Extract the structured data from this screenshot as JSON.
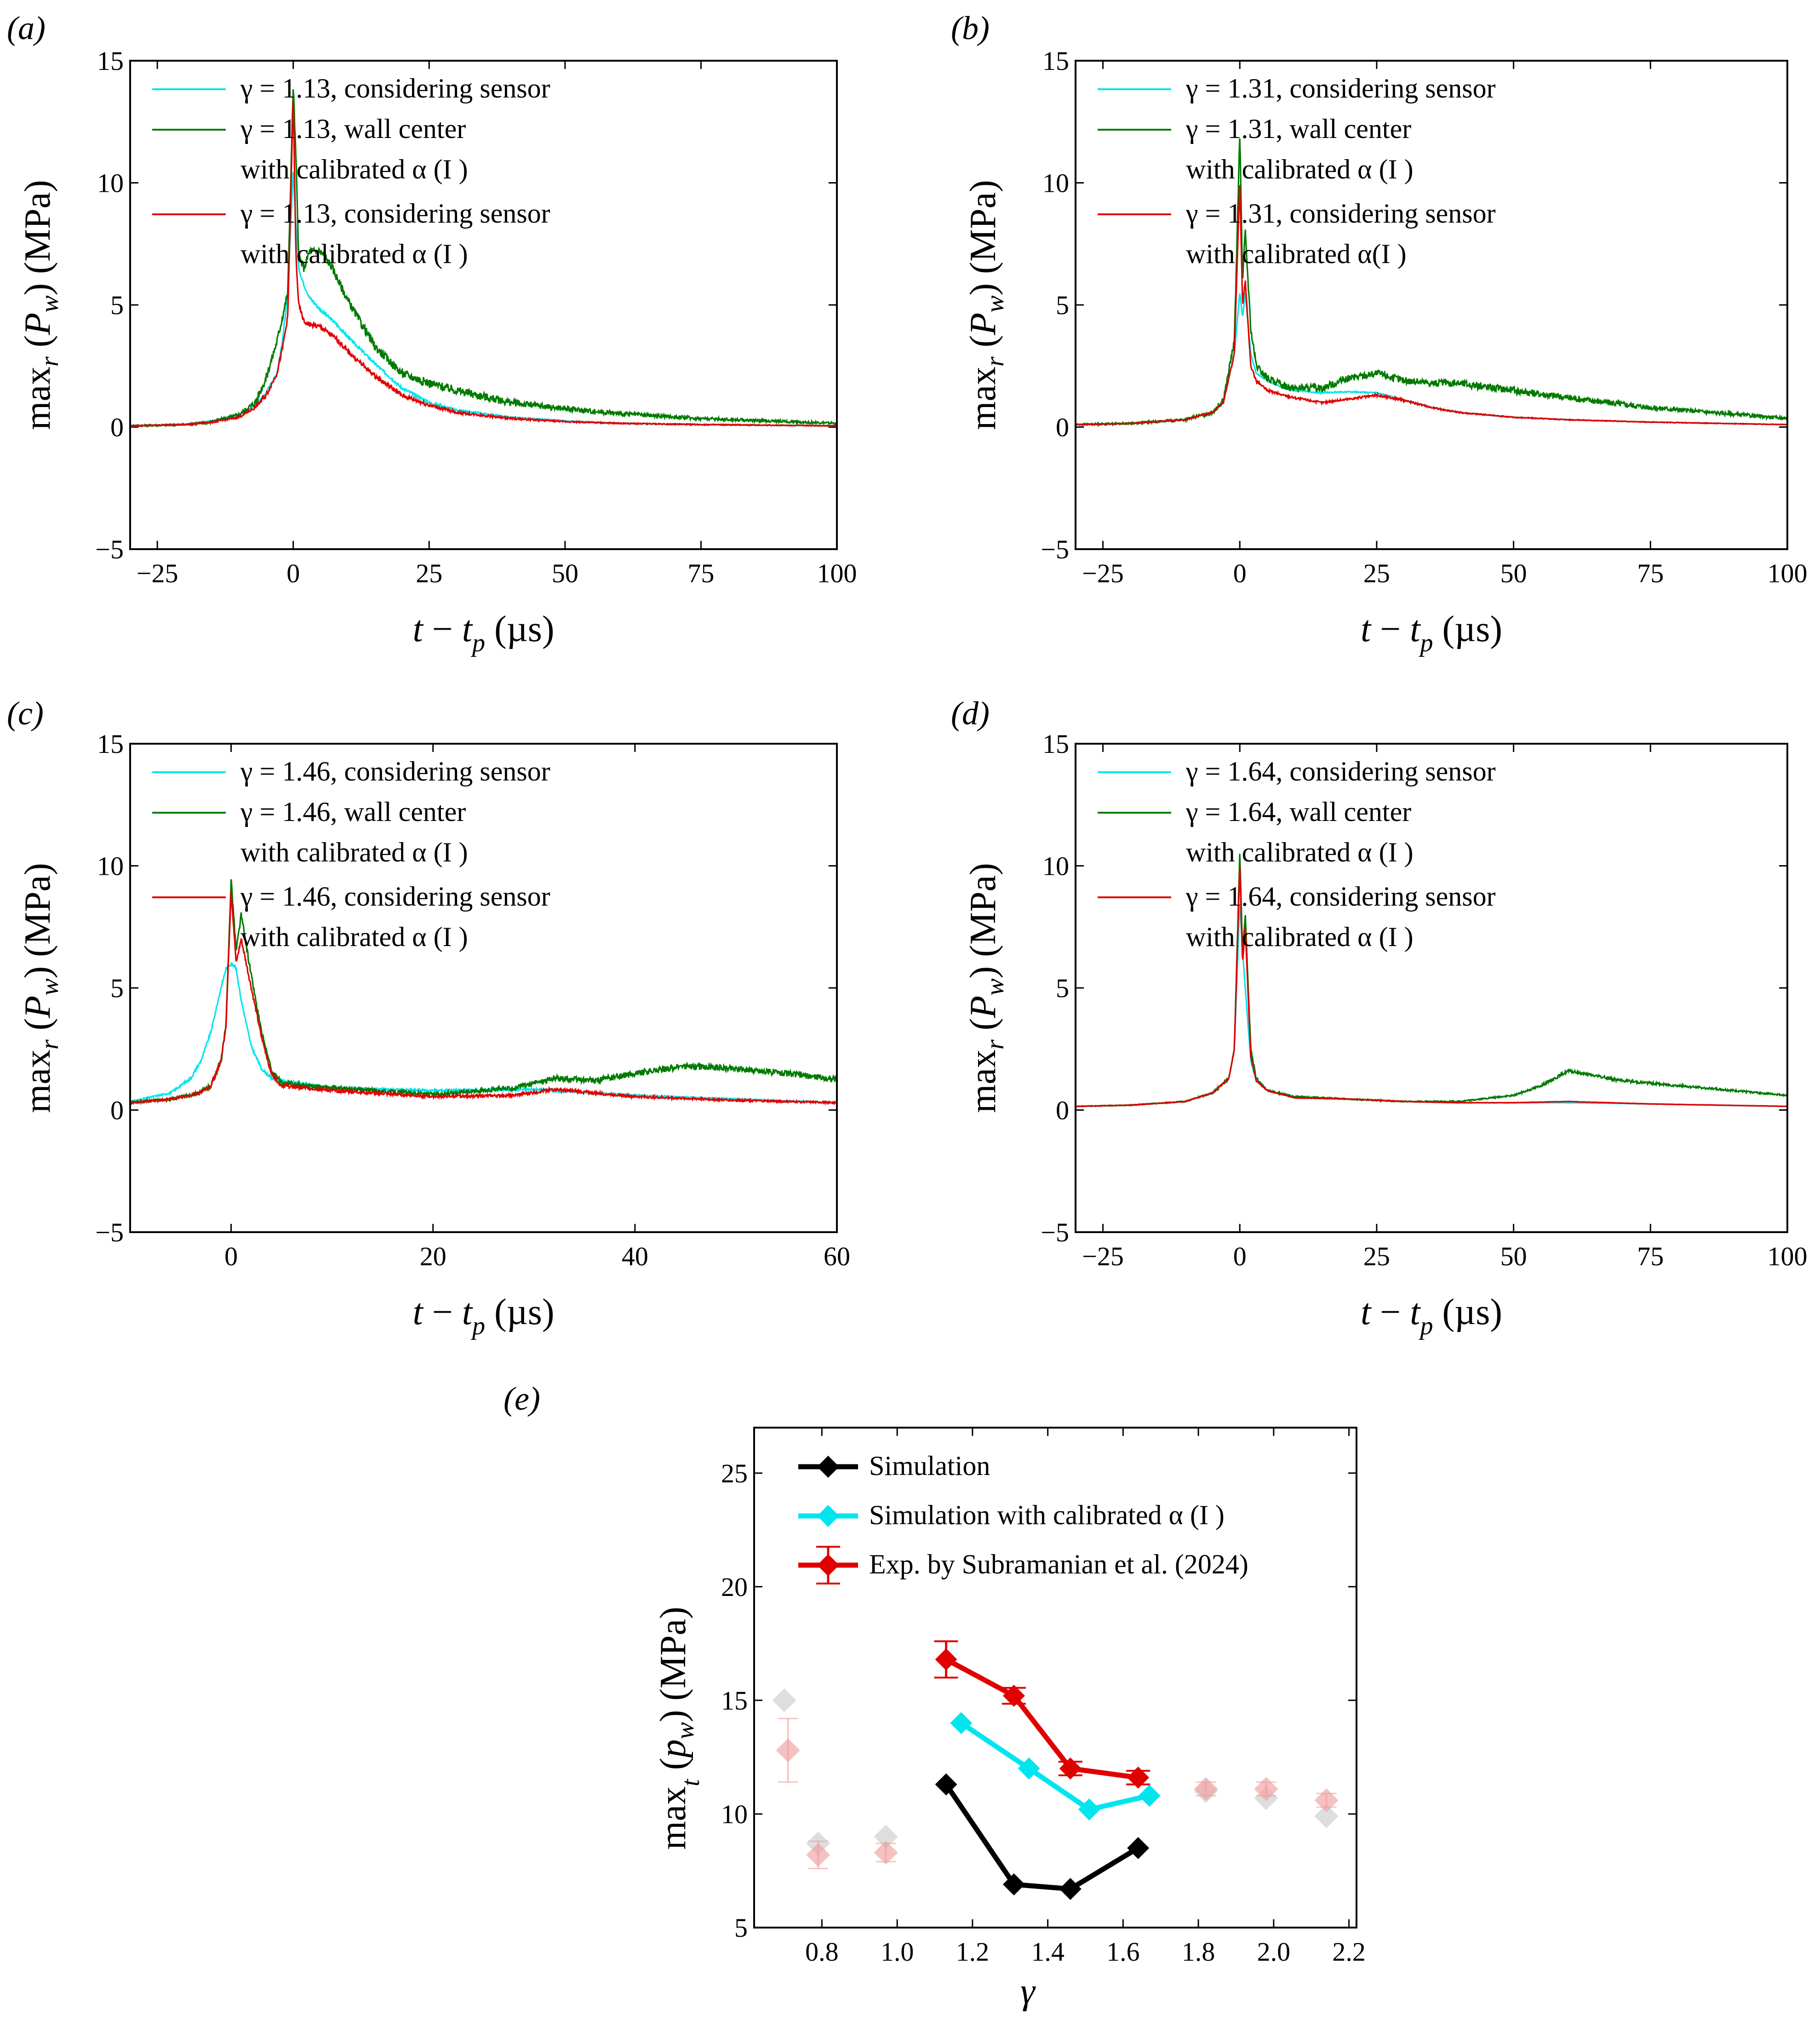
{
  "panels": [
    {
      "id": "a",
      "label": "(a)",
      "xlabel": "t − t_p (µs)",
      "ylabel": "max_r (P_w) (MPa)",
      "xlim": [
        -30,
        100
      ],
      "ylim": [
        -5,
        15
      ],
      "xticks": [
        -25,
        0,
        25,
        50,
        75,
        100
      ],
      "yticks": [
        -5,
        0,
        5,
        10,
        15
      ],
      "legend": [
        {
          "lines": [
            "γ = 1.13, considering sensor"
          ],
          "color": "#00e5ee"
        },
        {
          "lines": [
            "γ = 1.13, wall center",
            "with calibrated α (I )"
          ],
          "color": "#007a00"
        },
        {
          "lines": [
            "γ = 1.13, considering sensor",
            "with calibrated α (I )"
          ],
          "color": "#e00000"
        }
      ]
    },
    {
      "id": "b",
      "label": "(b)",
      "xlabel": "t − t_p (µs)",
      "ylabel": "max_r (P_w) (MPa)",
      "xlim": [
        -30,
        100
      ],
      "ylim": [
        -5,
        15
      ],
      "xticks": [
        -25,
        0,
        25,
        50,
        75,
        100
      ],
      "yticks": [
        -5,
        0,
        5,
        10,
        15
      ],
      "legend": [
        {
          "lines": [
            "γ = 1.31, considering sensor"
          ],
          "color": "#00e5ee"
        },
        {
          "lines": [
            "γ = 1.31, wall center",
            "with calibrated α (I )"
          ],
          "color": "#007a00"
        },
        {
          "lines": [
            "γ = 1.31, considering sensor",
            "with calibrated α(I )"
          ],
          "color": "#e00000"
        }
      ]
    },
    {
      "id": "c",
      "label": "(c)",
      "xlabel": "t − t_p (µs)",
      "ylabel": "max_r (P_w) (MPa)",
      "xlim": [
        -10,
        60
      ],
      "ylim": [
        -5,
        15
      ],
      "xticks": [
        0,
        20,
        40,
        60
      ],
      "yticks": [
        -5,
        0,
        5,
        10,
        15
      ],
      "legend": [
        {
          "lines": [
            "γ = 1.46, considering sensor"
          ],
          "color": "#00e5ee"
        },
        {
          "lines": [
            "γ = 1.46, wall center",
            "with calibrated α (I )"
          ],
          "color": "#007a00"
        },
        {
          "lines": [
            "γ = 1.46, considering sensor",
            "with calibrated α (I )"
          ],
          "color": "#e00000"
        }
      ]
    },
    {
      "id": "d",
      "label": "(d)",
      "xlabel": "t − t_p (µs)",
      "ylabel": "max_r (P_w) (MPa)",
      "xlim": [
        -30,
        100
      ],
      "ylim": [
        -5,
        15
      ],
      "xticks": [
        -25,
        0,
        25,
        50,
        75,
        100
      ],
      "yticks": [
        -5,
        0,
        5,
        10,
        15
      ],
      "legend": [
        {
          "lines": [
            "γ = 1.64, considering sensor"
          ],
          "color": "#00e5ee"
        },
        {
          "lines": [
            "γ = 1.64, wall center",
            "with calibrated α (I )"
          ],
          "color": "#007a00"
        },
        {
          "lines": [
            "γ = 1.64, considering sensor",
            "with calibrated α (I )"
          ],
          "color": "#e00000"
        }
      ]
    },
    {
      "id": "e",
      "label": "(e)",
      "xlabel": "γ",
      "ylabel": "max_t (p_w) (MPa)",
      "xlim": [
        0.62,
        2.22
      ],
      "ylim": [
        5,
        27
      ],
      "xticks": [
        0.8,
        1.0,
        1.2,
        1.4,
        1.6,
        1.8,
        2.0,
        2.2
      ],
      "xticklabels": [
        "0.8",
        "1.0",
        "1.2",
        "1.4",
        "1.6",
        "1.8",
        "2.0",
        "2.2"
      ],
      "yticks": [
        5,
        10,
        15,
        20,
        25
      ],
      "legend": [
        {
          "lines": [
            "Simulation"
          ],
          "color": "#000000"
        },
        {
          "lines": [
            "Simulation with calibrated α (I )"
          ],
          "color": "#00e5ee"
        },
        {
          "lines": [
            "Exp. by Subramanian et al. (2024)"
          ],
          "color": "#e00000"
        }
      ]
    }
  ],
  "chart_data": [
    {
      "panel": "a",
      "type": "line",
      "series": [
        {
          "name": "γ = 1.13, considering sensor",
          "color": "#00e5ee",
          "noise": 0.12,
          "x": [
            -30,
            -20,
            -15,
            -10,
            -7,
            -5,
            -3,
            -2,
            -1,
            0,
            0.5,
            1,
            2,
            3,
            5,
            8,
            10,
            15,
            20,
            25,
            30,
            40,
            50,
            60,
            75,
            100
          ],
          "y": [
            0.05,
            0.1,
            0.25,
            0.5,
            0.9,
            1.4,
            2.2,
            3.5,
            5.5,
            10.5,
            8.2,
            6.5,
            5.8,
            5.3,
            4.8,
            4.2,
            3.7,
            2.6,
            1.6,
            1.0,
            0.7,
            0.4,
            0.25,
            0.15,
            0.1,
            0.05
          ]
        },
        {
          "name": "γ = 1.13, wall center with calibrated α (I )",
          "color": "#007a00",
          "noise": 0.35,
          "x": [
            -30,
            -20,
            -15,
            -10,
            -7,
            -5,
            -3,
            -2,
            -1,
            0,
            0.5,
            1,
            2,
            3,
            5,
            7,
            10,
            15,
            20,
            25,
            30,
            40,
            50,
            60,
            75,
            100
          ],
          "y": [
            0.05,
            0.1,
            0.2,
            0.5,
            1.0,
            2.0,
            3.5,
            4.5,
            5.5,
            14.0,
            11.0,
            7.0,
            6.5,
            7.2,
            7.2,
            6.6,
            5.2,
            3.3,
            2.2,
            1.8,
            1.5,
            1.0,
            0.75,
            0.55,
            0.35,
            0.15
          ]
        },
        {
          "name": "γ = 1.13, considering sensor with calibrated α (I )",
          "color": "#e00000",
          "noise": 0.2,
          "x": [
            -30,
            -20,
            -15,
            -10,
            -7,
            -5,
            -3,
            -2,
            -1,
            0,
            0.5,
            1,
            2,
            3,
            5,
            8,
            10,
            15,
            20,
            25,
            30,
            40,
            50,
            60,
            75,
            100
          ],
          "y": [
            0.05,
            0.1,
            0.2,
            0.4,
            0.8,
            1.3,
            2.2,
            3.2,
            4.5,
            13.5,
            7.0,
            5.0,
            4.3,
            4.2,
            4.1,
            3.6,
            3.1,
            2.1,
            1.3,
            0.9,
            0.6,
            0.35,
            0.22,
            0.15,
            0.1,
            0.05
          ]
        }
      ]
    },
    {
      "panel": "b",
      "type": "line",
      "series": [
        {
          "name": "γ = 1.31, considering sensor",
          "color": "#00e5ee",
          "noise": 0.05,
          "x": [
            -30,
            -20,
            -10,
            -5,
            -3,
            -1,
            0,
            0.5,
            1,
            2,
            3,
            5,
            8,
            10,
            15,
            20,
            25,
            30,
            35,
            40,
            50,
            60,
            75,
            100
          ],
          "y": [
            0.1,
            0.15,
            0.3,
            0.6,
            1.0,
            3.0,
            5.5,
            4.5,
            5.5,
            3.0,
            2.2,
            1.9,
            1.6,
            1.5,
            1.4,
            1.45,
            1.4,
            1.1,
            0.8,
            0.6,
            0.4,
            0.3,
            0.2,
            0.1
          ]
        },
        {
          "name": "γ = 1.31, wall center with calibrated α (I )",
          "color": "#007a00",
          "noise": 0.3,
          "x": [
            -30,
            -20,
            -10,
            -5,
            -3,
            -1,
            0,
            0.5,
            1,
            2,
            3,
            5,
            8,
            10,
            15,
            20,
            25,
            30,
            35,
            40,
            50,
            60,
            75,
            100
          ],
          "y": [
            0.1,
            0.15,
            0.3,
            0.6,
            1.1,
            3.5,
            12.0,
            6.0,
            8.0,
            4.0,
            2.5,
            2.0,
            1.7,
            1.6,
            1.6,
            2.0,
            2.2,
            1.9,
            1.8,
            1.8,
            1.5,
            1.2,
            0.8,
            0.35
          ]
        },
        {
          "name": "γ = 1.31, considering sensor with calibrated α(I )",
          "color": "#e00000",
          "noise": 0.1,
          "x": [
            -30,
            -20,
            -10,
            -5,
            -3,
            -1,
            0,
            0.5,
            1,
            2,
            3,
            5,
            8,
            10,
            15,
            20,
            25,
            30,
            35,
            40,
            50,
            60,
            75,
            100
          ],
          "y": [
            0.1,
            0.15,
            0.3,
            0.6,
            1.0,
            3.0,
            10.0,
            5.0,
            6.0,
            2.5,
            1.9,
            1.5,
            1.3,
            1.2,
            1.0,
            1.15,
            1.3,
            1.1,
            0.8,
            0.6,
            0.4,
            0.3,
            0.2,
            0.1
          ]
        }
      ]
    },
    {
      "panel": "c",
      "type": "line",
      "series": [
        {
          "name": "γ = 1.46, considering sensor",
          "color": "#00e5ee",
          "noise": 0.12,
          "x": [
            -10,
            -6,
            -4,
            -3,
            -2,
            -1,
            -0.5,
            0,
            0.5,
            1,
            2,
            3,
            4,
            5,
            10,
            20,
            30,
            32,
            40,
            50,
            60
          ],
          "y": [
            0.35,
            0.7,
            1.3,
            2.0,
            3.2,
            5.0,
            5.8,
            6.0,
            5.8,
            4.5,
            2.6,
            1.7,
            1.3,
            1.2,
            0.9,
            0.8,
            0.85,
            0.8,
            0.6,
            0.45,
            0.3
          ]
        },
        {
          "name": "γ = 1.46, wall center with calibrated α (I )",
          "color": "#007a00",
          "noise": 0.25,
          "x": [
            -10,
            -6,
            -4,
            -3,
            -2,
            -1,
            -0.5,
            0,
            0.5,
            1,
            2,
            3,
            4,
            5,
            10,
            20,
            28,
            32,
            36,
            40,
            45,
            50,
            55,
            60
          ],
          "y": [
            0.3,
            0.45,
            0.6,
            0.75,
            1.0,
            2.0,
            3.5,
            9.5,
            6.5,
            8.0,
            5.5,
            3.2,
            1.6,
            1.1,
            0.9,
            0.65,
            0.9,
            1.3,
            1.2,
            1.5,
            1.8,
            1.7,
            1.5,
            1.25
          ]
        },
        {
          "name": "γ = 1.46, considering sensor with calibrated α (I )",
          "color": "#e00000",
          "noise": 0.2,
          "x": [
            -10,
            -6,
            -4,
            -3,
            -2,
            -1,
            -0.5,
            0,
            0.5,
            1,
            2,
            3,
            4,
            5,
            10,
            20,
            28,
            32,
            36,
            40,
            50,
            60
          ],
          "y": [
            0.3,
            0.45,
            0.6,
            0.75,
            1.0,
            2.0,
            3.5,
            9.0,
            6.0,
            7.0,
            5.0,
            3.0,
            1.5,
            1.0,
            0.8,
            0.55,
            0.6,
            0.85,
            0.7,
            0.55,
            0.4,
            0.3
          ]
        }
      ]
    },
    {
      "panel": "d",
      "type": "line",
      "series": [
        {
          "name": "γ = 1.64, considering sensor",
          "color": "#00e5ee",
          "noise": 0.04,
          "x": [
            -30,
            -20,
            -10,
            -5,
            -2,
            -1,
            0,
            0.5,
            1,
            2,
            3,
            5,
            10,
            20,
            25,
            30,
            40,
            50,
            60,
            75,
            100
          ],
          "y": [
            0.15,
            0.2,
            0.35,
            0.7,
            1.3,
            2.5,
            8.5,
            6.5,
            5.0,
            2.0,
            1.2,
            0.8,
            0.5,
            0.45,
            0.4,
            0.35,
            0.3,
            0.3,
            0.3,
            0.25,
            0.15
          ]
        },
        {
          "name": "γ = 1.64, wall center with calibrated α (I )",
          "color": "#007a00",
          "noise": 0.12,
          "x": [
            -30,
            -20,
            -10,
            -5,
            -2,
            -1,
            0,
            0.5,
            1,
            2,
            3,
            5,
            10,
            20,
            25,
            30,
            40,
            50,
            55,
            60,
            65,
            70,
            80,
            90,
            100
          ],
          "y": [
            0.15,
            0.2,
            0.35,
            0.7,
            1.3,
            2.5,
            10.5,
            6.5,
            8.0,
            2.5,
            1.3,
            0.8,
            0.55,
            0.45,
            0.4,
            0.35,
            0.35,
            0.6,
            1.0,
            1.6,
            1.4,
            1.2,
            1.0,
            0.8,
            0.6
          ]
        },
        {
          "name": "γ = 1.64, considering sensor with calibrated α (I )",
          "color": "#e00000",
          "noise": 0.05,
          "x": [
            -30,
            -20,
            -10,
            -5,
            -2,
            -1,
            0,
            0.5,
            1,
            2,
            3,
            5,
            10,
            20,
            25,
            30,
            40,
            50,
            60,
            75,
            100
          ],
          "y": [
            0.15,
            0.2,
            0.35,
            0.7,
            1.3,
            2.5,
            10.0,
            6.0,
            7.5,
            2.2,
            1.2,
            0.8,
            0.5,
            0.45,
            0.4,
            0.35,
            0.3,
            0.3,
            0.35,
            0.25,
            0.15
          ]
        }
      ]
    },
    {
      "panel": "e",
      "type": "line",
      "series": [
        {
          "name": "Simulation",
          "color": "#000000",
          "x": [
            1.13,
            1.31,
            1.46,
            1.64
          ],
          "y": [
            11.3,
            6.9,
            6.7,
            8.5
          ]
        },
        {
          "name": "Simulation with calibrated α (I )",
          "color": "#00e5ee",
          "x": [
            1.17,
            1.35,
            1.51,
            1.67
          ],
          "y": [
            14.0,
            12.0,
            10.2,
            10.8
          ]
        },
        {
          "name": "Exp. by Subramanian et al. (2024)",
          "color": "#e00000",
          "x": [
            1.13,
            1.31,
            1.46,
            1.64
          ],
          "y": [
            16.8,
            15.2,
            12.0,
            11.6
          ],
          "yerr": [
            0.8,
            0.35,
            0.3,
            0.3
          ]
        }
      ],
      "faded_points": [
        {
          "color": "#cccccc",
          "x": [
            0.7,
            0.79,
            0.97,
            1.82,
            1.98,
            2.14
          ],
          "y": [
            15.0,
            8.7,
            9.0,
            11.0,
            10.7,
            9.9
          ]
        },
        {
          "color": "#f0a0a0",
          "x": [
            0.71,
            0.79,
            0.97,
            1.82,
            1.98,
            2.14
          ],
          "y": [
            12.8,
            8.2,
            8.3,
            11.1,
            11.1,
            10.6
          ],
          "yerr": [
            1.4,
            0.6,
            0.4,
            0.3,
            0.3,
            0.3
          ]
        }
      ]
    }
  ]
}
